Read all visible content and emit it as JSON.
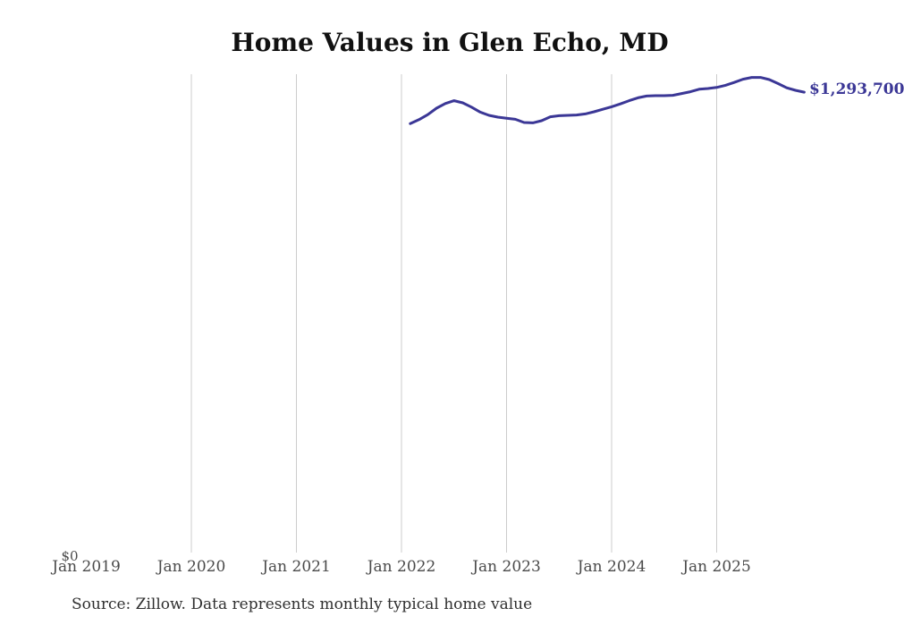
{
  "chart_data": {
    "type": "line",
    "title": "Home Values in Glen Echo, MD",
    "source_note": "Source: Zillow. Data represents monthly typical home value",
    "series_name": "Monthly typical home value",
    "end_label": "$1,293,700",
    "line_color": "#3b3796",
    "grid_color": "#cccccc",
    "xlabel": "",
    "ylabel": "",
    "ylim": [
      0,
      1345000
    ],
    "legend": "none",
    "grid": "vertical-yearly",
    "x_ticks": [
      {
        "label": "Jan 2019",
        "year": 2019,
        "gridline": false
      },
      {
        "label": "Jan 2020",
        "year": 2020,
        "gridline": true
      },
      {
        "label": "Jan 2021",
        "year": 2021,
        "gridline": true
      },
      {
        "label": "Jan 2022",
        "year": 2022,
        "gridline": true
      },
      {
        "label": "Jan 2023",
        "year": 2023,
        "gridline": true
      },
      {
        "label": "Jan 2024",
        "year": 2024,
        "gridline": true
      },
      {
        "label": "Jan 2025",
        "year": 2025,
        "gridline": true
      }
    ],
    "y_ticks": [
      {
        "label": "$0",
        "value": 0
      }
    ],
    "x": [
      "2022-01",
      "2022-02",
      "2022-03",
      "2022-04",
      "2022-05",
      "2022-06",
      "2022-07",
      "2022-08",
      "2022-09",
      "2022-10",
      "2022-11",
      "2022-12",
      "2023-01",
      "2023-02",
      "2023-03",
      "2023-04",
      "2023-05",
      "2023-06",
      "2023-07",
      "2023-08",
      "2023-09",
      "2023-10",
      "2023-11",
      "2023-12",
      "2024-01",
      "2024-02",
      "2024-03",
      "2024-04",
      "2024-05",
      "2024-06",
      "2024-07",
      "2024-08",
      "2024-09",
      "2024-10",
      "2024-11",
      "2024-12",
      "2025-01",
      "2025-02",
      "2025-03",
      "2025-04",
      "2025-05",
      "2025-06",
      "2025-07",
      "2025-08",
      "2025-09",
      "2025-10"
    ],
    "values": [
      1206000,
      1217000,
      1231000,
      1249000,
      1262000,
      1270000,
      1264000,
      1252000,
      1238000,
      1229000,
      1224000,
      1221000,
      1218000,
      1209000,
      1208000,
      1214000,
      1225000,
      1228000,
      1229000,
      1230000,
      1233000,
      1239000,
      1246000,
      1253000,
      1261000,
      1270000,
      1278000,
      1283000,
      1284000,
      1284000,
      1285000,
      1290000,
      1295000,
      1302000,
      1304000,
      1307000,
      1313000,
      1321000,
      1330000,
      1335000,
      1335000,
      1329000,
      1318000,
      1306000,
      1299000,
      1293700
    ]
  }
}
